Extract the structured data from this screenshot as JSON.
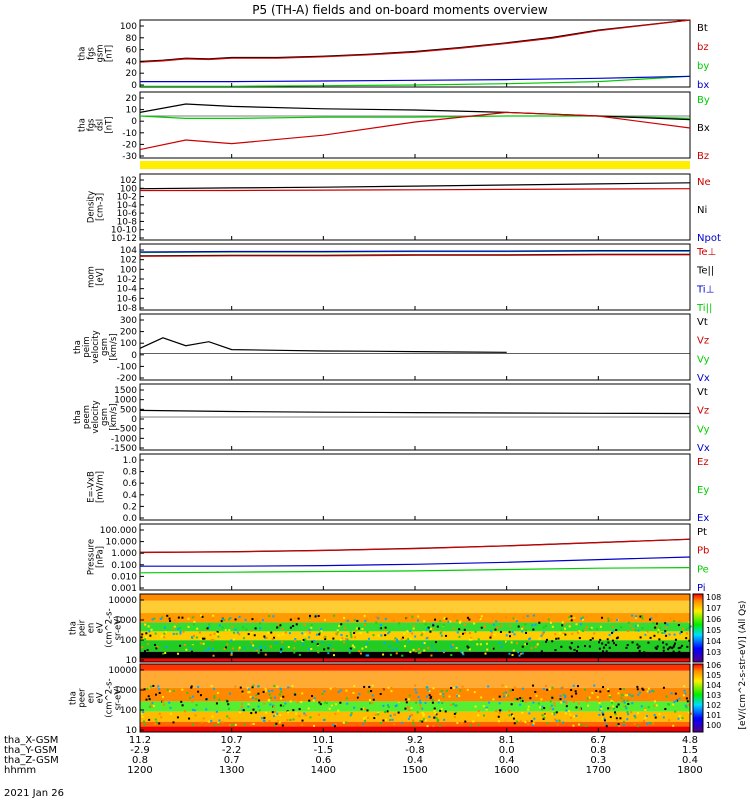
{
  "title": "P5 (TH-A) fields and on-board moments overview",
  "date": "2021 Jan 26",
  "ephemeris": {
    "labels": [
      "tha_X-GSM",
      "tha_Y-GSM",
      "tha_Z-GSM",
      "hhmm"
    ],
    "rows": [
      [
        "11.2",
        "10.7",
        "10.1",
        "9.2",
        "8.1",
        "6.7",
        "4.8"
      ],
      [
        "-2.9",
        "-2.2",
        "-1.5",
        "-0.8",
        "0.0",
        "0.8",
        "1.5"
      ],
      [
        "0.8",
        "0.7",
        "0.6",
        "0.4",
        "0.4",
        "0.3",
        "0.4"
      ],
      [
        "1200",
        "1300",
        "1400",
        "1500",
        "1600",
        "1700",
        "1800"
      ]
    ]
  },
  "colorbar": {
    "label": "[eV/(cm^2-s-str-eV)] (All Qs)",
    "upper_ticks": [
      "10^8",
      "10^7",
      "10^6",
      "10^5",
      "10^4",
      "10^3"
    ],
    "lower_ticks": [
      "10^6",
      "10^5",
      "10^4",
      "10^3",
      "10^2",
      "10^1",
      "10^0"
    ]
  },
  "chart_data": [
    {
      "id": "fgs_mag",
      "type": "line",
      "ylabel": [
        "tha",
        "fgs",
        "gsm",
        "[nT]"
      ],
      "ylim": [
        0,
        100
      ],
      "yticks": [
        "100",
        "80",
        "60",
        "40",
        "20",
        "0"
      ],
      "legend": [
        {
          "name": "Bt",
          "color": "#000000"
        },
        {
          "name": "bz",
          "color": "#cc0000"
        },
        {
          "name": "by",
          "color": "#00cc00"
        },
        {
          "name": "bx",
          "color": "#0000cc"
        }
      ],
      "series": [
        {
          "name": "Bt",
          "color": "#000000",
          "x": [
            1200,
            1215,
            1230,
            1245,
            1300,
            1330,
            1400,
            1430,
            1500,
            1530,
            1600,
            1630,
            1700,
            1800
          ],
          "y": [
            38,
            40,
            43,
            42,
            44,
            44,
            46,
            49,
            53,
            59,
            66,
            74,
            85,
            100
          ]
        },
        {
          "name": "bz",
          "color": "#cc0000",
          "x": [
            1200,
            1215,
            1230,
            1245,
            1300,
            1330,
            1400,
            1430,
            1500,
            1530,
            1600,
            1630,
            1700,
            1800
          ],
          "y": [
            37,
            39,
            42,
            41,
            43,
            43,
            45,
            48,
            52,
            58,
            65,
            73,
            84,
            100
          ]
        },
        {
          "name": "by",
          "color": "#00cc00",
          "x": [
            1200,
            1300,
            1400,
            1500,
            1600,
            1700,
            1800
          ],
          "y": [
            1,
            1,
            2,
            3,
            5,
            8,
            16
          ]
        },
        {
          "name": "bx",
          "color": "#0000cc",
          "x": [
            1200,
            1300,
            1400,
            1500,
            1600,
            1700,
            1800
          ],
          "y": [
            8,
            8,
            9,
            10,
            11,
            13,
            16
          ]
        }
      ]
    },
    {
      "id": "fgs_dsl",
      "type": "line",
      "ylabel": [
        "tha",
        "fgs",
        "dsl",
        "[nT]"
      ],
      "ylim": [
        -35,
        20
      ],
      "yticks": [
        "20",
        "10",
        "0",
        "-10",
        "-20",
        "-30"
      ],
      "legend": [
        {
          "name": "By",
          "color": "#00cc00"
        },
        {
          "name": "Bx",
          "color": "#000000"
        },
        {
          "name": "Bz",
          "color": "#cc0000"
        }
      ],
      "series": [
        {
          "name": "By",
          "color": "#00cc00",
          "x": [
            1200,
            1230,
            1300,
            1400,
            1500,
            1600,
            1700,
            1800
          ],
          "y": [
            0,
            -2,
            -2,
            -1,
            -1,
            0,
            0,
            -2
          ]
        },
        {
          "name": "Bx",
          "color": "#000000",
          "x": [
            1200,
            1230,
            1300,
            1400,
            1500,
            1600,
            1700,
            1800
          ],
          "y": [
            3,
            10,
            8,
            6,
            5,
            3,
            0,
            -3
          ]
        },
        {
          "name": "Bz",
          "color": "#cc0000",
          "x": [
            1200,
            1230,
            1300,
            1400,
            1500,
            1600,
            1700,
            1800
          ],
          "y": [
            -28,
            -20,
            -23,
            -16,
            -5,
            3,
            0,
            -10
          ]
        }
      ]
    },
    {
      "id": "density",
      "type": "line",
      "ylabel": [
        "Density",
        "[cm-3]"
      ],
      "ylim": [
        -14,
        4
      ],
      "scale": "log",
      "yticks": [
        "10^2",
        "10^0",
        "10^-2",
        "10^-4",
        "10^-6",
        "10^-8",
        "10^-10",
        "10^-12"
      ],
      "legend": [
        {
          "name": "Ne",
          "color": "#cc0000"
        },
        {
          "name": "Ni",
          "color": "#000000"
        },
        {
          "name": "Npot",
          "color": "#0000cc"
        }
      ],
      "series": [
        {
          "name": "Ni",
          "color": "#000000",
          "x": [
            1200,
            1300,
            1400,
            1500,
            1600,
            1700,
            1800
          ],
          "y": [
            0,
            0.2,
            0.4,
            0.7,
            1,
            1.3,
            1.6
          ]
        },
        {
          "name": "Ne",
          "color": "#cc0000",
          "x": [
            1200,
            1300,
            1400,
            1500,
            1600,
            1700,
            1800
          ],
          "y": [
            -0.5,
            -0.5,
            -0.4,
            -0.3,
            -0.2,
            -0.1,
            0
          ]
        }
      ]
    },
    {
      "id": "mom_temp",
      "type": "line",
      "ylabel": [
        "mom",
        "[eV]"
      ],
      "ylim": [
        -9,
        5
      ],
      "scale": "log",
      "yticks": [
        "10^4",
        "10^2",
        "10^0",
        "10^-2",
        "10^-4",
        "10^-6",
        "10^-8"
      ],
      "legend": [
        {
          "name": "Te⊥",
          "color": "#cc0000"
        },
        {
          "name": "Te||",
          "color": "#000000"
        },
        {
          "name": "Ti⊥",
          "color": "#0000cc"
        },
        {
          "name": "Ti||",
          "color": "#00cc00"
        }
      ],
      "series": [
        {
          "name": "Ti||",
          "color": "#00cc00",
          "x": [
            1200,
            1300,
            1400,
            1500,
            1600,
            1700,
            1800
          ],
          "y": [
            3.2,
            3.3,
            3.3,
            3.4,
            3.4,
            3.5,
            3.5
          ]
        },
        {
          "name": "Ti⊥",
          "color": "#0000cc",
          "x": [
            1200,
            1300,
            1400,
            1500,
            1600,
            1700,
            1800
          ],
          "y": [
            3.3,
            3.4,
            3.4,
            3.5,
            3.5,
            3.6,
            3.6
          ]
        },
        {
          "name": "Te||",
          "color": "#000000",
          "x": [
            1200,
            1300,
            1400,
            1500,
            1600,
            1700,
            1800
          ],
          "y": [
            2.5,
            2.6,
            2.6,
            2.7,
            2.7,
            2.8,
            2.8
          ]
        },
        {
          "name": "Te⊥",
          "color": "#cc0000",
          "x": [
            1200,
            1300,
            1400,
            1500,
            1600,
            1700,
            1800
          ],
          "y": [
            2.4,
            2.5,
            2.5,
            2.6,
            2.6,
            2.7,
            2.7
          ]
        }
      ]
    },
    {
      "id": "peim_vel",
      "type": "line",
      "ylabel": [
        "tha",
        "peim",
        "velocity",
        "gsm",
        "[km/s]"
      ],
      "ylim": [
        -200,
        300
      ],
      "yticks": [
        "300",
        "200",
        "100",
        "0",
        "-100",
        "-200"
      ],
      "legend": [
        {
          "name": "Vt",
          "color": "#000000"
        },
        {
          "name": "Vz",
          "color": "#cc0000"
        },
        {
          "name": "Vy",
          "color": "#00cc00"
        },
        {
          "name": "Vx",
          "color": "#0000cc"
        }
      ],
      "series": [
        {
          "name": "Vt",
          "color": "#000000",
          "x": [
            1200,
            1215,
            1230,
            1245,
            1300,
            1330,
            1400,
            1430,
            1500,
            1530,
            1600
          ],
          "y": [
            40,
            120,
            60,
            90,
            30,
            25,
            20,
            18,
            15,
            12,
            10
          ]
        }
      ]
    },
    {
      "id": "peem_vel",
      "type": "line",
      "ylabel": [
        "tha",
        "peem",
        "velocity",
        "gsm",
        "[km/s]"
      ],
      "ylim": [
        -1500,
        1500
      ],
      "yticks": [
        "1500",
        "1000",
        "500",
        "0",
        "-500",
        "-1000",
        "-1500"
      ],
      "legend": [
        {
          "name": "Vt",
          "color": "#000000"
        },
        {
          "name": "Vz",
          "color": "#cc0000"
        },
        {
          "name": "Vy",
          "color": "#00cc00"
        },
        {
          "name": "Vx",
          "color": "#0000cc"
        }
      ],
      "series": [
        {
          "name": "Vt",
          "color": "#000000",
          "x": [
            1200,
            1300,
            1400,
            1500,
            1600,
            1700,
            1800
          ],
          "y": [
            300,
            250,
            220,
            200,
            180,
            170,
            160
          ]
        }
      ]
    },
    {
      "id": "efield",
      "type": "line",
      "ylabel": [
        "E=-VxB",
        "[mV/m]"
      ],
      "ylim": [
        0,
        1
      ],
      "yticks": [
        "1.0",
        "0.8",
        "0.6",
        "0.4",
        "0.2",
        "0.0"
      ],
      "legend": [
        {
          "name": "Ez",
          "color": "#cc0000"
        },
        {
          "name": "Ey",
          "color": "#00cc00"
        },
        {
          "name": "Ex",
          "color": "#0000cc"
        }
      ],
      "series": []
    },
    {
      "id": "pressure",
      "type": "line",
      "ylabel": [
        "Pressure",
        "[nPa]"
      ],
      "ylim": [
        -3,
        2
      ],
      "scale": "log",
      "yticks": [
        "100.000",
        "10.000",
        "1.000",
        "0.100",
        "0.010",
        "0.001"
      ],
      "legend": [
        {
          "name": "Pt",
          "color": "#000000"
        },
        {
          "name": "Pb",
          "color": "#cc0000"
        },
        {
          "name": "Pe",
          "color": "#00cc00"
        },
        {
          "name": "Pi",
          "color": "#0000cc"
        }
      ],
      "series": [
        {
          "name": "Pt",
          "color": "#000000",
          "x": [
            1200,
            1300,
            1400,
            1500,
            1600,
            1700,
            1800
          ],
          "y": [
            -0.15,
            -0.1,
            0.0,
            0.15,
            0.35,
            0.6,
            0.85
          ]
        },
        {
          "name": "Pb",
          "color": "#cc0000",
          "x": [
            1200,
            1300,
            1400,
            1500,
            1600,
            1700,
            1800
          ],
          "y": [
            -0.16,
            -0.11,
            -0.01,
            0.14,
            0.34,
            0.59,
            0.84
          ]
        },
        {
          "name": "Pi",
          "color": "#0000cc",
          "x": [
            1200,
            1300,
            1400,
            1500,
            1600,
            1700,
            1800
          ],
          "y": [
            -1.2,
            -1.2,
            -1.15,
            -1.05,
            -0.9,
            -0.7,
            -0.5
          ]
        },
        {
          "name": "Pe",
          "color": "#00cc00",
          "x": [
            1200,
            1300,
            1400,
            1500,
            1600,
            1700,
            1800
          ],
          "y": [
            -1.7,
            -1.65,
            -1.6,
            -1.55,
            -1.45,
            -1.35,
            -1.3
          ]
        }
      ]
    },
    {
      "id": "peir_spec",
      "type": "heatmap",
      "ylabel": [
        "tha",
        "peir",
        "en",
        "eV",
        "(cm^2-s-",
        "sr-eV)"
      ],
      "yticks": [
        "10000",
        "1000",
        "100",
        "10"
      ]
    },
    {
      "id": "peer_spec",
      "type": "heatmap",
      "ylabel": [
        "tha",
        "peer",
        "en",
        "eV",
        "(cm^2-s-",
        "sr-eV)"
      ],
      "yticks": [
        "10000",
        "1000",
        "100",
        "10"
      ]
    }
  ]
}
